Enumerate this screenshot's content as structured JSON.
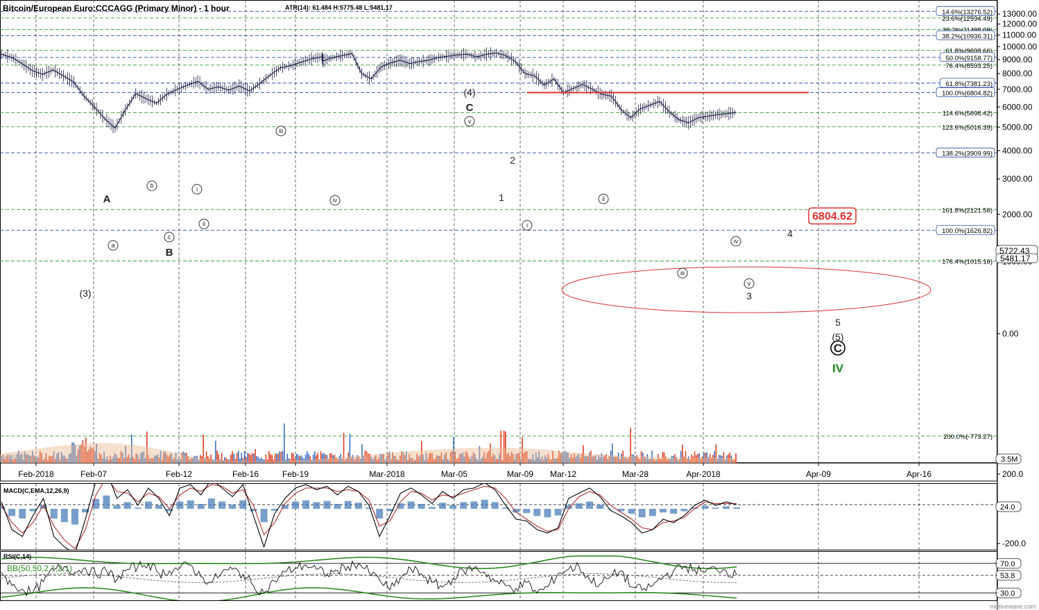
{
  "header": {
    "title": "Bitcoin/European Euro:CCCAGG (Primary Minor) - 1 hour",
    "stats": "ATR(14): 61.484  H:5775.48  L:5481.17"
  },
  "colors": {
    "price": "#1a1a40",
    "fib_green": "#2f9e2f",
    "fib_blue": "#2a4a9e",
    "target_red": "#e03030",
    "rsi_green": "#2e8b22",
    "macd_hist": "#4a7fb8",
    "macd_signal": "#b03030",
    "volume_red": "#e03d1e",
    "volume_blue": "#3c6fc0",
    "volume_ma": "#e8b890",
    "wave_iv": "#1a8c1a"
  },
  "chart_data": [
    {
      "type": "line",
      "panel": "price",
      "title": "Bitcoin/European Euro:CCCAGG (Primary Minor) - 1 hour",
      "y_scale": "log",
      "ylim": [
        -900,
        14200
      ],
      "y_ticks": [
        "13000.00",
        "12000.00",
        "11000.00",
        "10000.00",
        "9000.00",
        "8000.00",
        "7000.00",
        "6000.00",
        "5000.00",
        "4000.00",
        "3000.00",
        "2000.00",
        "1000.00",
        "0.00"
      ],
      "x_ticks": [
        "Feb-2018",
        "Feb-07",
        "Feb-12",
        "Feb-16",
        "Feb-19",
        "Mar-2018",
        "Mar-05",
        "Mar-09",
        "Mar-12",
        "Mar-28",
        "Apr-2018",
        "Apr-09",
        "Apr-16"
      ],
      "series": [
        {
          "values": [
            9400,
            9150,
            8700,
            8200,
            7950,
            8250,
            7850,
            7450,
            6600,
            6000,
            5400,
            4950,
            5850,
            6750,
            6450,
            6200,
            6700,
            7000,
            7250,
            7500,
            7000,
            7150,
            6950,
            7200,
            6900,
            7350,
            7900,
            8400,
            8550,
            8800,
            9050,
            9200,
            8900,
            9150,
            9300,
            9450,
            8000,
            7650,
            8450,
            8750,
            8950,
            8700,
            8850,
            8950,
            9150,
            9250,
            9350,
            9400,
            9200,
            9400,
            9500,
            9300,
            8850,
            8000,
            7850,
            7250,
            7650,
            6800,
            7050,
            7300,
            7000,
            6700,
            6600,
            5850,
            5450,
            5900,
            6100,
            6300,
            5750,
            5350,
            5200,
            5450,
            5520,
            5600,
            5650,
            5722
          ]
        }
      ],
      "fib_levels": [
        {
          "label": "14.6%(13276.52)",
          "value": 13276.52
        },
        {
          "label": "23.6%(12594.49)",
          "value": 12594.49
        },
        {
          "label": "38.2%(11488.09)",
          "value": 11488.09
        },
        {
          "label": "38.2%(10936.31)",
          "value": 10936.31
        },
        {
          "label": "61.8%(9699.66)",
          "value": 9699.66
        },
        {
          "label": "50.0%(9158.77)",
          "value": 9158.77
        },
        {
          "label": "76.4%(8593.25)",
          "value": 8593.25
        },
        {
          "label": "61.8%(7381.23)",
          "value": 7381.23
        },
        {
          "label": "100.0%(6804.82)",
          "value": 6804.82
        },
        {
          "label": "114.6%(5698.42)",
          "value": 5698.42
        },
        {
          "label": "123.6%(5016.39)",
          "value": 5016.39
        },
        {
          "label": "138.2%(3909.99)",
          "value": 3909.99
        },
        {
          "label": "161.8%(2121.56)",
          "value": 2121.56
        },
        {
          "label": "100.0%(1626.82)",
          "value": 1626.82
        },
        {
          "label": "176.4%(1015.16)",
          "value": 1015.16
        },
        {
          "label": "200.0%(-773.27)",
          "value": -773.27
        }
      ],
      "last_price": "5722.43",
      "last_low": "5481.17",
      "target_label": "6804.62",
      "volume_label": "3.5M",
      "watermark": "MotiveWave",
      "wave_labels": [
        "(3)",
        "A",
        "B",
        "ⓐ",
        "ⓑ",
        "ⓒ",
        "ⓘ",
        "ⓘⓘ",
        "ⓘⓘⓘ",
        "ⓘⓥ",
        "(4)",
        "C",
        "ⓥ",
        "2",
        "1",
        "ⓘ",
        "ⓘⓘ",
        "ⓘⓘⓘ",
        "ⓘⓥ",
        "ⓥ",
        "3",
        "4",
        "5",
        "(5)",
        "Ⓒ",
        "IV"
      ]
    },
    {
      "type": "line",
      "panel": "indicator",
      "title": "MACD(C,EMA,12,26,9)",
      "y_ticks": [
        "200.0",
        "-200.0"
      ],
      "last_value": "24.0",
      "series": [
        {
          "values": [
            40,
            -120,
            -160,
            -40,
            60,
            -160,
            -220,
            -260,
            -60,
            160,
            220,
            60,
            110,
            20,
            120,
            60,
            -40,
            120,
            140,
            80,
            170,
            120,
            70,
            140,
            -40,
            -220,
            -30,
            60,
            120,
            140,
            110,
            130,
            80,
            130,
            100,
            20,
            -160,
            -40,
            90,
            120,
            80,
            30,
            100,
            60,
            110,
            120,
            150,
            110,
            20,
            -60,
            -70,
            -120,
            -140,
            -110,
            60,
            90,
            120,
            70,
            -10,
            -40,
            -80,
            -140,
            -120,
            -60,
            -80,
            -40,
            20,
            50,
            20,
            40,
            24
          ]
        },
        {
          "values": [
            20,
            -80,
            -140,
            -80,
            20,
            -100,
            -180,
            -230,
            -120,
            80,
            180,
            100,
            90,
            40,
            90,
            70,
            0,
            80,
            120,
            100,
            140,
            130,
            90,
            110,
            20,
            -150,
            -80,
            30,
            90,
            120,
            120,
            120,
            100,
            110,
            100,
            50,
            -100,
            -70,
            40,
            100,
            90,
            50,
            80,
            70,
            90,
            110,
            130,
            120,
            60,
            -20,
            -60,
            -100,
            -130,
            -120,
            0,
            70,
            100,
            80,
            20,
            -20,
            -60,
            -110,
            -120,
            -80,
            -70,
            -50,
            0,
            40,
            30,
            30,
            30
          ]
        }
      ]
    },
    {
      "type": "line",
      "panel": "indicator",
      "title": "RSI(C,14)",
      "band_label": "BB(50,50,2,1,2,1)",
      "y_ticks": [
        "70.0",
        "53.8",
        "30.0"
      ],
      "series": [
        {
          "values": [
            58,
            40,
            35,
            30,
            45,
            62,
            66,
            58,
            64,
            55,
            60,
            48,
            62,
            66,
            70,
            56,
            60,
            64,
            68,
            52,
            44,
            58,
            62,
            55,
            40,
            30,
            46,
            58,
            64,
            68,
            62,
            55,
            60,
            66,
            70,
            58,
            48,
            34,
            50,
            62,
            56,
            44,
            38,
            50,
            60,
            64,
            58,
            46,
            40,
            36,
            44,
            30,
            38,
            56,
            62,
            66,
            48,
            42,
            52,
            60,
            38,
            34,
            40,
            52,
            60,
            66,
            62,
            58,
            64,
            60,
            54
          ]
        }
      ]
    }
  ]
}
